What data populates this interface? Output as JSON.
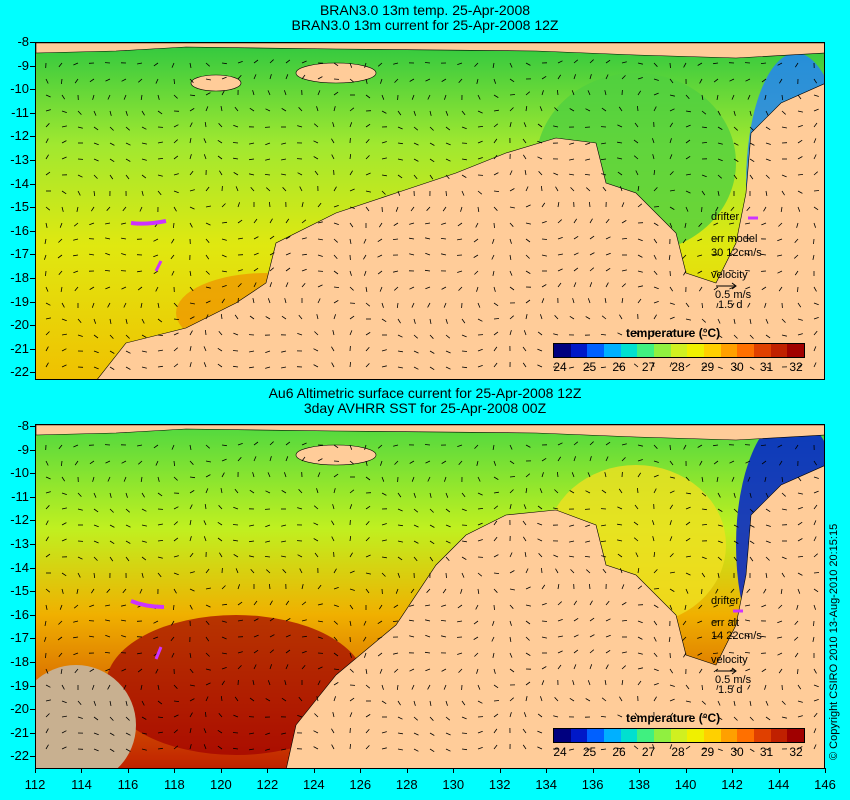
{
  "top": {
    "title1": "BRAN3.0 13m temp. 25-Apr-2008",
    "title2": "BRAN3.0 13m current for 25-Apr-2008 12Z",
    "legend": {
      "drifter": "drifter",
      "err_line1": "err model",
      "err_line2": "30 12cm/s",
      "velocity": "velocity",
      "speed": "0.5 m/s",
      "duration": "1.5 d"
    }
  },
  "bottom": {
    "title1": "Au6 Altimetric surface current for 25-Apr-2008 12Z",
    "title2": "3day AVHRR SST for 25-Apr-2008 00Z",
    "legend": {
      "drifter": "drifter",
      "err_line1": "err alt",
      "err_line2": "14 22cm/s",
      "velocity": "velocity",
      "speed": "0.5 m/s",
      "duration": "1.5 d"
    }
  },
  "colorbar": {
    "title": "temperature (°C)",
    "labels": [
      "24",
      "25",
      "26",
      "27",
      "28",
      "29",
      "30",
      "31",
      "32"
    ],
    "colors": [
      "#00007f",
      "#0018c8",
      "#0060ff",
      "#00b0ff",
      "#00e0d0",
      "#40f080",
      "#90f040",
      "#d0f020",
      "#f0f000",
      "#ffd000",
      "#ffa000",
      "#ff7000",
      "#e04000",
      "#c02000",
      "#a00000"
    ]
  },
  "latitude_labels": [
    "-8",
    "-9",
    "-10",
    "-11",
    "-12",
    "-13",
    "-14",
    "-15",
    "-16",
    "-17",
    "-18",
    "-19",
    "-20",
    "-21",
    "-22"
  ],
  "longitude_labels": [
    "112",
    "114",
    "116",
    "118",
    "120",
    "122",
    "124",
    "126",
    "128",
    "130",
    "132",
    "134",
    "136",
    "138",
    "140",
    "142",
    "144",
    "146"
  ],
  "copyright": "© Copyright CSIRO 2010   13-Aug-2010 20:15:15",
  "colors": {
    "background": "#00ffff",
    "land": "#ffcc99",
    "drifter": "#cc33ff"
  }
}
